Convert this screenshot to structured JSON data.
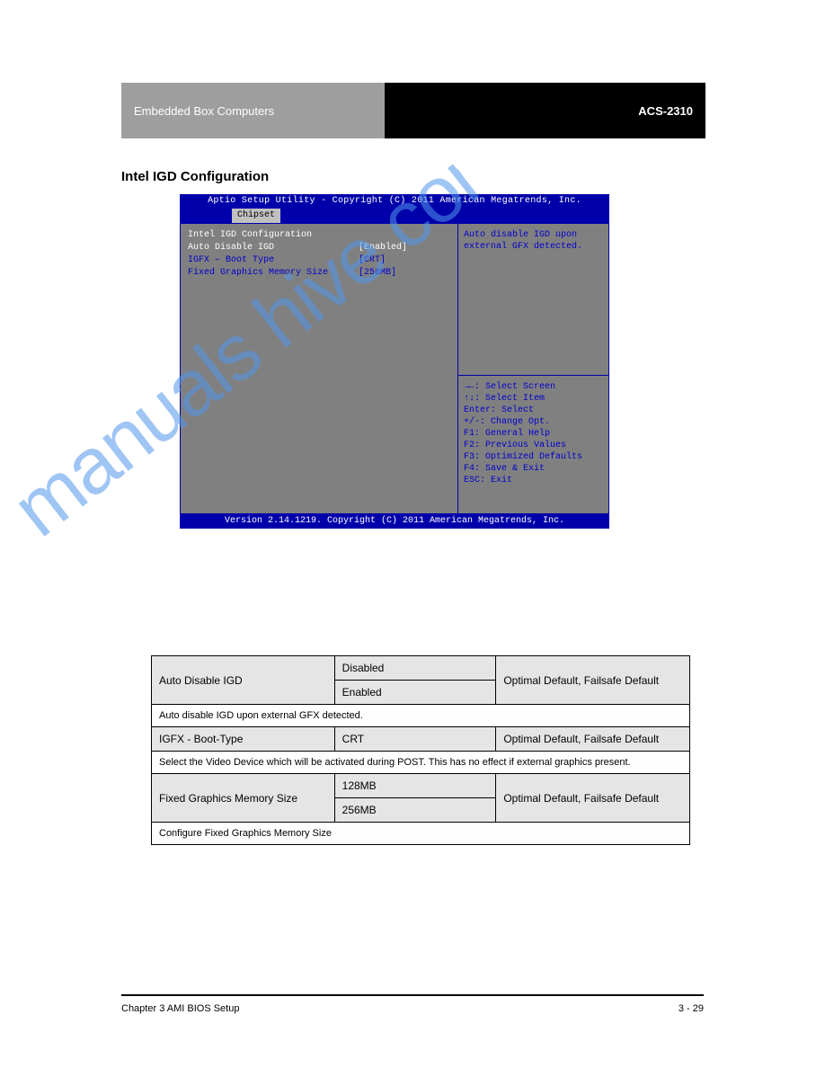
{
  "header": {
    "left": "Embedded Box Computers",
    "right": "ACS-2310"
  },
  "section_title": "Intel IGD Configuration",
  "bios": {
    "title": "Aptio Setup Utility - Copyright (C) 2011 American Megatrends, Inc.",
    "tab": "Chipset",
    "heading": "Intel IGD Configuration",
    "items": [
      {
        "label": "Auto Disable IGD",
        "value": "[Enabled]",
        "highlighted": true
      },
      {
        "label": "IGFX – Boot Type",
        "value": "[CRT]",
        "highlighted": false
      },
      {
        "label": "Fixed Graphics Memory Size",
        "value": "[256MB]",
        "highlighted": false
      }
    ],
    "help_text": "Auto disable IGD upon external GFX detected.",
    "keys": [
      "→←: Select Screen",
      "↑↓: Select Item",
      "Enter: Select",
      "+/-: Change Opt.",
      "F1: General Help",
      "F2: Previous Values",
      "F3: Optimized Defaults",
      "F4: Save & Exit",
      "ESC: Exit"
    ],
    "footer": "Version 2.14.1219. Copyright (C) 2011 American Megatrends, Inc."
  },
  "watermark": "manuals    hive   com",
  "table": {
    "rows": [
      {
        "type": "option",
        "label": "Auto Disable IGD",
        "values": [
          "Disabled",
          "Enabled"
        ],
        "default": "Optimal Default, Failsafe Default"
      },
      {
        "type": "desc",
        "text": "Auto disable IGD upon external GFX detected."
      },
      {
        "type": "option",
        "label": "IGFX - Boot-Type",
        "values": [
          "CRT"
        ],
        "default": "Optimal Default, Failsafe Default"
      },
      {
        "type": "desc",
        "text": "Select the Video Device which will be activated during POST. This has no effect if external graphics present."
      },
      {
        "type": "option",
        "label": "Fixed Graphics Memory Size",
        "values": [
          "128MB",
          "256MB"
        ],
        "default": "Optimal Default, Failsafe Default"
      },
      {
        "type": "desc",
        "text": "Configure Fixed Graphics Memory Size"
      }
    ]
  },
  "footer": {
    "left": "Chapter 3 AMI BIOS Setup",
    "right": "3 - 29"
  }
}
